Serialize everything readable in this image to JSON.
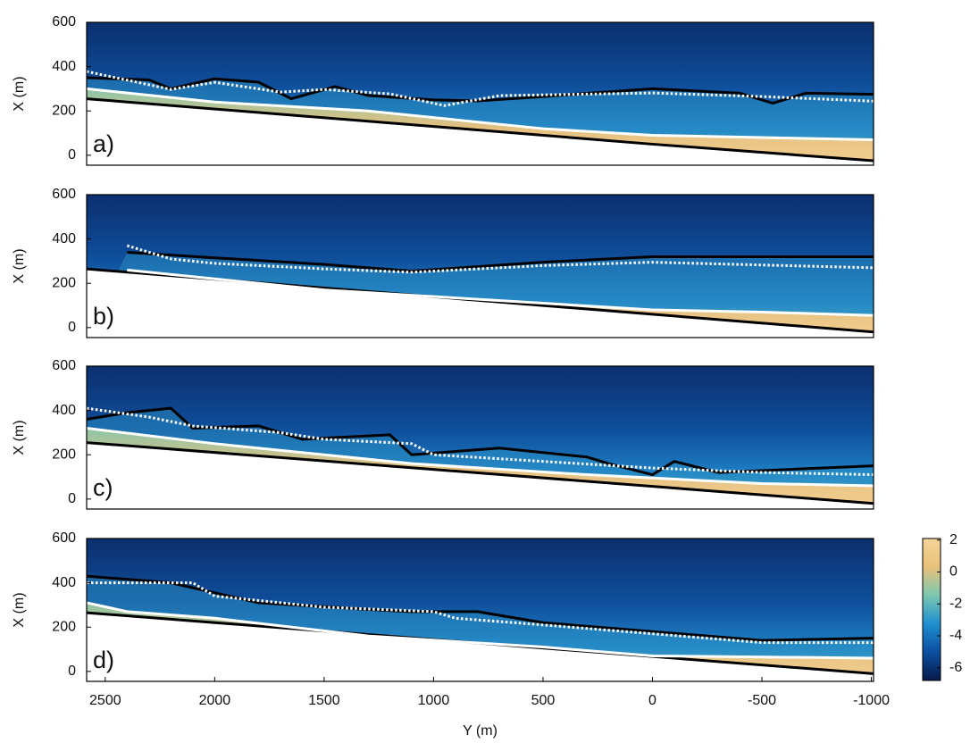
{
  "chart_data": [
    {
      "type": "heatmap",
      "label": "a)",
      "ylabel": "X (m)",
      "xlim": [
        2585,
        -1010
      ],
      "ylim": [
        -45,
        600
      ],
      "yticks": [
        0,
        200,
        400,
        600
      ],
      "series": [
        {
          "color": "#000000",
          "style": "solid",
          "x": [
            2585,
            1000,
            0,
            -1010
          ],
          "values": [
            255,
            130,
            50,
            -25
          ]
        },
        {
          "color": "#ffffff",
          "style": "solid",
          "x": [
            2585,
            2000,
            1300,
            500,
            0,
            -1010
          ],
          "values": [
            300,
            240,
            200,
            120,
            90,
            70
          ]
        },
        {
          "color": "#000000",
          "style": "solid",
          "x": [
            2585,
            2300,
            2200,
            2000,
            1800,
            1650,
            1450,
            1300,
            1000,
            800,
            500,
            0,
            -400,
            -550,
            -700,
            -1010
          ],
          "values": [
            350,
            340,
            300,
            345,
            330,
            255,
            310,
            270,
            250,
            245,
            265,
            300,
            280,
            235,
            280,
            275
          ]
        },
        {
          "color": "#ffffff",
          "style": "dotted",
          "x": [
            2585,
            2200,
            2000,
            1700,
            1500,
            1200,
            950,
            700,
            0,
            -500,
            -1010
          ],
          "values": [
            378,
            297,
            329,
            285,
            297,
            277,
            224,
            269,
            281,
            265,
            244
          ]
        }
      ]
    },
    {
      "type": "heatmap",
      "label": "b)",
      "ylabel": "X (m)",
      "xlim": [
        2585,
        -1010
      ],
      "ylim": [
        -45,
        600
      ],
      "yticks": [
        0,
        200,
        400,
        600
      ],
      "series": [
        {
          "color": "#000000",
          "style": "solid",
          "x": [
            2585,
            -1010
          ],
          "values": [
            265,
            -20
          ]
        },
        {
          "color": "#ffffff",
          "style": "solid",
          "x": [
            2400,
            1500,
            500,
            0,
            -500,
            -1010
          ],
          "values": [
            260,
            170,
            110,
            80,
            70,
            55
          ]
        },
        {
          "color": "#000000",
          "style": "solid",
          "x": [
            2400,
            2000,
            1500,
            1100,
            500,
            0,
            -1010
          ],
          "values": [
            340,
            315,
            285,
            255,
            295,
            320,
            320
          ]
        },
        {
          "color": "#ffffff",
          "style": "dotted",
          "x": [
            2400,
            2200,
            2000,
            1500,
            1100,
            500,
            0,
            -1010
          ],
          "values": [
            370,
            310,
            290,
            265,
            250,
            280,
            295,
            270
          ]
        }
      ]
    },
    {
      "type": "heatmap",
      "label": "c)",
      "ylabel": "X (m)",
      "xlim": [
        2585,
        -1010
      ],
      "ylim": [
        -45,
        600
      ],
      "yticks": [
        0,
        200,
        400,
        600
      ],
      "series": [
        {
          "color": "#000000",
          "style": "solid",
          "x": [
            2585,
            -1010
          ],
          "values": [
            255,
            -20
          ]
        },
        {
          "color": "#ffffff",
          "style": "solid",
          "x": [
            2585,
            2000,
            1100,
            300,
            -500,
            -1010
          ],
          "values": [
            320,
            250,
            160,
            110,
            70,
            60
          ]
        },
        {
          "color": "#000000",
          "style": "solid",
          "x": [
            2585,
            2400,
            2200,
            2100,
            1800,
            1600,
            1200,
            1100,
            700,
            300,
            200,
            0,
            -100,
            -300,
            -1010
          ],
          "values": [
            360,
            390,
            410,
            320,
            330,
            270,
            290,
            200,
            230,
            190,
            160,
            110,
            170,
            120,
            150
          ]
        },
        {
          "color": "#ffffff",
          "style": "dotted",
          "x": [
            2585,
            2300,
            2100,
            1700,
            1500,
            1100,
            1000,
            500,
            0,
            -500,
            -1010
          ],
          "values": [
            410,
            370,
            330,
            300,
            270,
            250,
            200,
            170,
            140,
            120,
            110
          ]
        }
      ]
    },
    {
      "type": "heatmap",
      "label": "d)",
      "ylabel": "X (m)",
      "xlabel": "Y (m)",
      "xlim": [
        2585,
        -1010
      ],
      "ylim": [
        -45,
        600
      ],
      "yticks": [
        0,
        200,
        400,
        600
      ],
      "xticks": [
        2500,
        2000,
        1500,
        1000,
        500,
        0,
        -500,
        -1000
      ],
      "series": [
        {
          "color": "#000000",
          "style": "solid",
          "x": [
            2585,
            -1010
          ],
          "values": [
            265,
            -10
          ]
        },
        {
          "color": "#ffffff",
          "style": "solid",
          "x": [
            2585,
            2400,
            2000,
            1300,
            500,
            0,
            -1010
          ],
          "values": [
            310,
            270,
            240,
            160,
            110,
            70,
            60
          ]
        },
        {
          "color": "#000000",
          "style": "solid",
          "x": [
            2585,
            2200,
            1800,
            1300,
            1100,
            800,
            500,
            0,
            -500,
            -1010
          ],
          "values": [
            430,
            400,
            310,
            280,
            270,
            270,
            220,
            180,
            140,
            150
          ]
        },
        {
          "color": "#ffffff",
          "style": "dotted",
          "x": [
            2585,
            2100,
            2000,
            1500,
            1000,
            900,
            500,
            0,
            -500,
            -1010
          ],
          "values": [
            400,
            400,
            340,
            290,
            270,
            240,
            210,
            170,
            130,
            130
          ]
        }
      ],
      "colorbar": {
        "clim": [
          -6.8,
          2.1
        ],
        "ticks": [
          2,
          0,
          -2,
          -4,
          -6
        ],
        "colors": [
          "#071a4a",
          "#0b4fa0",
          "#1f8fd0",
          "#7cc7b0",
          "#e8c27a",
          "#f5d59a"
        ]
      }
    }
  ]
}
